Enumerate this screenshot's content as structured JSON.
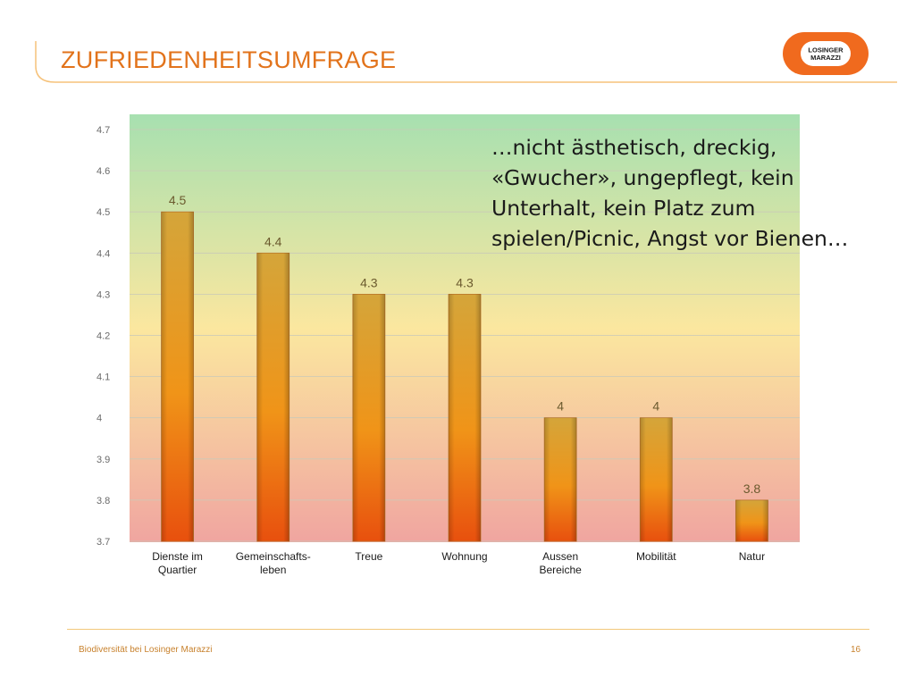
{
  "slide": {
    "title": "ZUFRIEDENHEITSUMFRAGE",
    "annotation": "…nicht ästhetisch, dreckig,\n«Gwucher», ungepflegt, kein\nUnterhalt, kein Platz zum\nspielen/Picnic, Angst vor Bienen…",
    "footer_text": "Biodiversität bei Losinger Marazzi",
    "page_number": "16",
    "logo": {
      "line1": "LOSINGER",
      "line2": "MARAZZI"
    }
  },
  "colors": {
    "accent": "#e2731b",
    "bar_top": "#d4a53a",
    "bar_bottom": "#e8500e",
    "plot_top": "#a7e0b0",
    "plot_middle": "#fbe79f",
    "plot_bottom": "#f0a5a0",
    "logo": "#f06a1e"
  },
  "chart_data": {
    "type": "bar",
    "categories": [
      [
        "Dienste im",
        "Quartier"
      ],
      [
        "Gemeinschafts-",
        "leben"
      ],
      [
        "Treue"
      ],
      [
        "Wohnung"
      ],
      [
        "Aussen",
        "Bereiche"
      ],
      [
        "Mobilität"
      ],
      [
        "Natur"
      ]
    ],
    "values": [
      4.5,
      4.4,
      4.3,
      4.3,
      4.0,
      4.0,
      3.8
    ],
    "data_labels": [
      "4.5",
      "4.4",
      "4.3",
      "4.3",
      "4",
      "4",
      "3.8"
    ],
    "yticks": [
      "3.7",
      "3.8",
      "3.9",
      "4",
      "4.1",
      "4.2",
      "4.3",
      "4.4",
      "4.5",
      "4.6",
      "4.7"
    ],
    "ylim": [
      3.7,
      4.7
    ],
    "grid": true,
    "legend": "none"
  }
}
